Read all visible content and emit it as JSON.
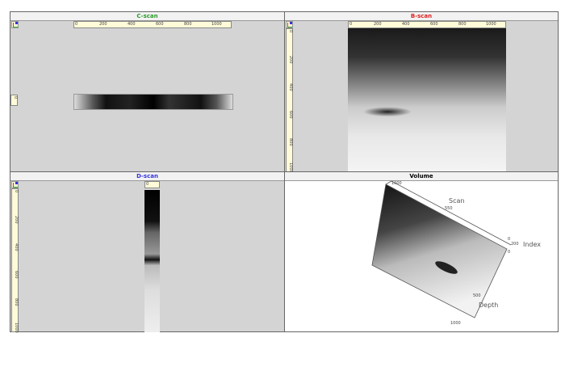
{
  "cscan": {
    "title": "C-scan",
    "title_color": "#2a9a2a",
    "h_ticks": [
      "0",
      "200",
      "400",
      "600",
      "800",
      "1000"
    ],
    "v_ticks": [
      "0"
    ]
  },
  "bscan": {
    "title": "B-scan",
    "title_color": "#e02020",
    "h_ticks": [
      "0",
      "200",
      "400",
      "600",
      "800",
      "1000"
    ],
    "v_ticks": [
      "0",
      "200",
      "400",
      "600",
      "800",
      "1000"
    ]
  },
  "dscan": {
    "title": "D-scan",
    "title_color": "#3333dd",
    "h_ticks": [
      "0"
    ],
    "v_ticks": [
      "0",
      "200",
      "400",
      "600",
      "800",
      "1000"
    ]
  },
  "volume": {
    "title": "Volume",
    "axis_scan": "Scan",
    "axis_index": "Index",
    "axis_depth": "Depth",
    "scan_ticks": [
      "1000",
      "550"
    ],
    "index_ticks": [
      "0",
      "200",
      "0"
    ],
    "depth_ticks": [
      "500",
      "1000"
    ]
  }
}
